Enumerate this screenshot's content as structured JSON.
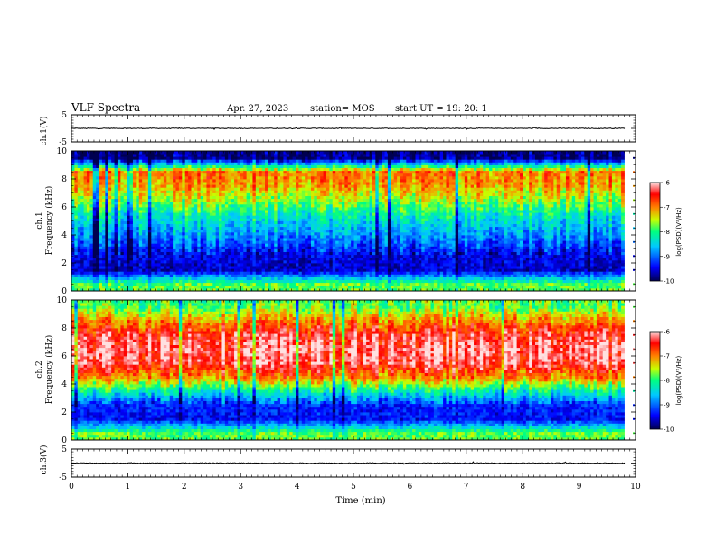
{
  "header": {
    "title": "VLF Spectra",
    "date": "Apr. 27, 2023",
    "station": "station= MOS",
    "start_ut": "start  UT =   19: 20: 1"
  },
  "chart_data": [
    {
      "type": "line",
      "panel": "ch1-waveform",
      "ylabel": "ch.1(V)",
      "ylim": [
        -5,
        5
      ],
      "yticks": [
        "5",
        "-5"
      ],
      "x": [
        0,
        1,
        2,
        3,
        4,
        5,
        6,
        7,
        8,
        9,
        9.8
      ],
      "values": [
        0,
        0,
        0,
        0,
        0,
        0,
        0,
        0,
        0,
        0,
        0
      ]
    },
    {
      "type": "heatmap",
      "panel": "ch1-spectrogram",
      "ylabel_line1": "ch.1",
      "ylabel_line2": "Frequency (kHz)",
      "ylim": [
        0,
        10
      ],
      "xlim": [
        0,
        10
      ],
      "x_end_minutes": 9.8,
      "yticks": [
        "0",
        "2",
        "4",
        "6",
        "8",
        "10"
      ],
      "frequency_kHz": [
        0.5,
        1.5,
        2.5,
        3.5,
        4.5,
        5.5,
        6.5,
        7.5,
        8.5,
        9.5
      ],
      "log_psd": [
        -7.8,
        -9.6,
        -9.5,
        -9.0,
        -8.6,
        -8.2,
        -7.6,
        -7.1,
        -6.9,
        -9.8
      ]
    },
    {
      "type": "heatmap",
      "panel": "ch2-spectrogram",
      "ylabel_line1": "ch.2",
      "ylabel_line2": "Frequency (kHz)",
      "ylim": [
        0,
        10
      ],
      "xlim": [
        0,
        10
      ],
      "x_end_minutes": 9.8,
      "yticks": [
        "0",
        "2",
        "4",
        "6",
        "8",
        "10"
      ],
      "frequency_kHz": [
        0.5,
        1.5,
        2.5,
        3.5,
        4.5,
        5.5,
        6.5,
        7.5,
        8.5,
        9.5
      ],
      "log_psd": [
        -7.8,
        -9.4,
        -9.3,
        -8.2,
        -7.0,
        -6.3,
        -6.2,
        -6.4,
        -7.0,
        -7.8
      ]
    },
    {
      "type": "line",
      "panel": "ch3-waveform",
      "ylabel": "ch.3(V)",
      "ylim": [
        -5,
        5
      ],
      "yticks": [
        "5",
        "-5"
      ],
      "xlabel": "Time (min)",
      "xticks": [
        "0",
        "1",
        "2",
        "3",
        "4",
        "5",
        "6",
        "7",
        "8",
        "9",
        "10"
      ],
      "x": [
        0,
        1,
        2,
        3,
        4,
        5,
        6,
        7,
        8,
        9,
        9.8
      ],
      "values": [
        0,
        0,
        0,
        0,
        0,
        0,
        0,
        0,
        0,
        0,
        0
      ]
    }
  ],
  "colorbar": {
    "label": "log(PSD)(V²/Hz)",
    "ticks": [
      "-6",
      "-7",
      "-8",
      "-9",
      "-10"
    ],
    "range": [
      -10,
      -6
    ],
    "colors": [
      "#000050",
      "#0000ff",
      "#00c8ff",
      "#00ff80",
      "#c8ff00",
      "#ff8000",
      "#ff0000",
      "#ffffff"
    ]
  }
}
